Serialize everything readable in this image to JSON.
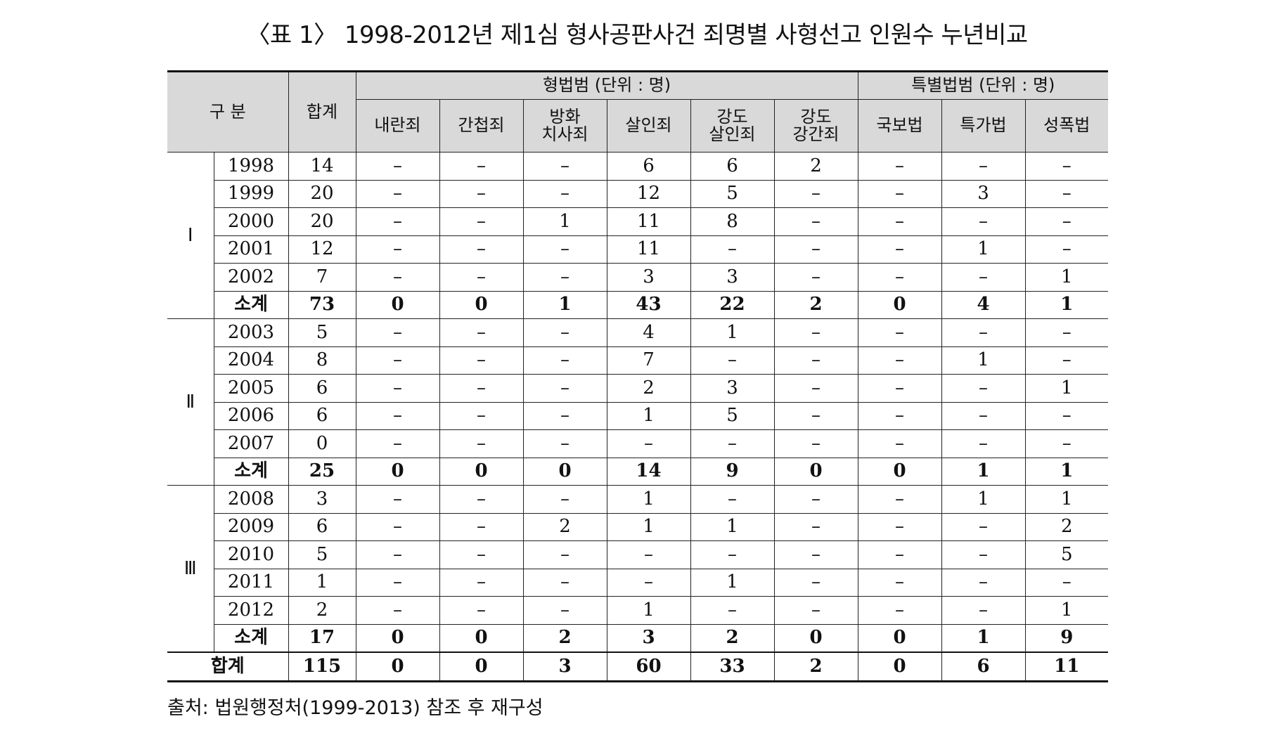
{
  "title": "〈표 1〉 1998-2012년 제1심 형사공판사건 죄명별 사형선고 인원수 누년비교",
  "header": {
    "category": "구 분",
    "total": "합계",
    "criminal_law_group": "형법범 (단위 : 명)",
    "special_law_group": "특별법범 (단위 : 명)",
    "columns": [
      {
        "line1": "내란죄",
        "line2": ""
      },
      {
        "line1": "간첩죄",
        "line2": ""
      },
      {
        "line1": "방화",
        "line2": "치사죄"
      },
      {
        "line1": "살인죄",
        "line2": ""
      },
      {
        "line1": "강도",
        "line2": "살인죄"
      },
      {
        "line1": "강도",
        "line2": "강간죄"
      },
      {
        "line1": "국보법",
        "line2": ""
      },
      {
        "line1": "특가법",
        "line2": ""
      },
      {
        "line1": "성폭법",
        "line2": ""
      }
    ]
  },
  "periods": [
    {
      "label": "Ⅰ",
      "rows": [
        {
          "year": "1998",
          "total": "14",
          "cells": [
            "–",
            "–",
            "–",
            "6",
            "6",
            "2",
            "–",
            "–",
            "–"
          ]
        },
        {
          "year": "1999",
          "total": "20",
          "cells": [
            "–",
            "–",
            "–",
            "12",
            "5",
            "–",
            "–",
            "3",
            "–"
          ]
        },
        {
          "year": "2000",
          "total": "20",
          "cells": [
            "–",
            "–",
            "1",
            "11",
            "8",
            "–",
            "–",
            "–",
            "–"
          ]
        },
        {
          "year": "2001",
          "total": "12",
          "cells": [
            "–",
            "–",
            "–",
            "11",
            "–",
            "–",
            "–",
            "1",
            "–"
          ]
        },
        {
          "year": "2002",
          "total": "7",
          "cells": [
            "–",
            "–",
            "–",
            "3",
            "3",
            "–",
            "–",
            "–",
            "1"
          ]
        }
      ],
      "subtotal": {
        "label": "소계",
        "total": "73",
        "cells": [
          "0",
          "0",
          "1",
          "43",
          "22",
          "2",
          "0",
          "4",
          "1"
        ]
      }
    },
    {
      "label": "Ⅱ",
      "rows": [
        {
          "year": "2003",
          "total": "5",
          "cells": [
            "–",
            "–",
            "–",
            "4",
            "1",
            "–",
            "–",
            "–",
            "–"
          ]
        },
        {
          "year": "2004",
          "total": "8",
          "cells": [
            "–",
            "–",
            "–",
            "7",
            "–",
            "–",
            "–",
            "1",
            "–"
          ]
        },
        {
          "year": "2005",
          "total": "6",
          "cells": [
            "–",
            "–",
            "–",
            "2",
            "3",
            "–",
            "–",
            "–",
            "1"
          ]
        },
        {
          "year": "2006",
          "total": "6",
          "cells": [
            "–",
            "–",
            "–",
            "1",
            "5",
            "–",
            "–",
            "–",
            "–"
          ]
        },
        {
          "year": "2007",
          "total": "0",
          "cells": [
            "–",
            "–",
            "–",
            "–",
            "–",
            "–",
            "–",
            "–",
            "–"
          ]
        }
      ],
      "subtotal": {
        "label": "소계",
        "total": "25",
        "cells": [
          "0",
          "0",
          "0",
          "14",
          "9",
          "0",
          "0",
          "1",
          "1"
        ]
      }
    },
    {
      "label": "Ⅲ",
      "rows": [
        {
          "year": "2008",
          "total": "3",
          "cells": [
            "–",
            "–",
            "–",
            "1",
            "–",
            "–",
            "–",
            "1",
            "1"
          ]
        },
        {
          "year": "2009",
          "total": "6",
          "cells": [
            "–",
            "–",
            "2",
            "1",
            "1",
            "–",
            "–",
            "–",
            "2"
          ]
        },
        {
          "year": "2010",
          "total": "5",
          "cells": [
            "–",
            "–",
            "–",
            "–",
            "–",
            "–",
            "–",
            "–",
            "5"
          ]
        },
        {
          "year": "2011",
          "total": "1",
          "cells": [
            "–",
            "–",
            "–",
            "–",
            "1",
            "–",
            "–",
            "–",
            "–"
          ]
        },
        {
          "year": "2012",
          "total": "2",
          "cells": [
            "–",
            "–",
            "–",
            "1",
            "–",
            "–",
            "–",
            "–",
            "1"
          ]
        }
      ],
      "subtotal": {
        "label": "소계",
        "total": "17",
        "cells": [
          "0",
          "0",
          "2",
          "3",
          "2",
          "0",
          "0",
          "1",
          "9"
        ]
      }
    }
  ],
  "grand_total": {
    "label": "합계",
    "total": "115",
    "cells": [
      "0",
      "0",
      "3",
      "60",
      "33",
      "2",
      "0",
      "6",
      "11"
    ]
  },
  "source": "출처: 법원행정처(1999-2013) 참조 후 재구성"
}
